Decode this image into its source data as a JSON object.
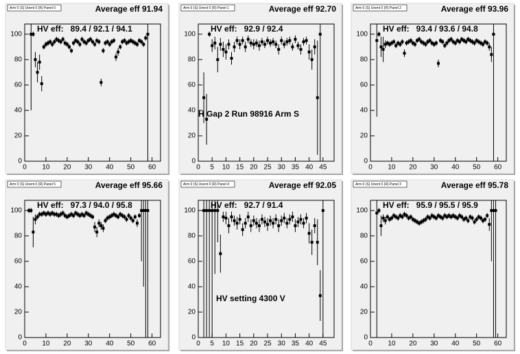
{
  "chart_data": [
    {
      "type": "scatter",
      "label": "Arm 0 (S) Unent 0 (R) Panel 0",
      "title": "Average eff 91.94",
      "annotation": "HV eff:   89.4 / 92.1 / 94.1",
      "x": [
        3,
        4,
        5,
        6,
        7,
        8,
        9,
        10,
        11,
        12,
        13,
        14,
        15,
        16,
        17,
        18,
        19,
        20,
        21,
        22,
        23,
        24,
        25,
        26,
        27,
        28,
        29,
        30,
        31,
        32,
        33,
        34,
        35,
        36,
        37,
        38,
        39,
        40,
        41,
        42,
        43,
        44,
        45,
        46,
        47,
        48,
        49,
        50,
        51,
        52,
        53,
        54,
        55,
        56,
        57,
        58
      ],
      "values": [
        100,
        100,
        80,
        70,
        78,
        61,
        90,
        92,
        93,
        94,
        92,
        94,
        96,
        95,
        94,
        96,
        93,
        92,
        90,
        87,
        93,
        95,
        94,
        92,
        96,
        94,
        93,
        95,
        96,
        94,
        92,
        95,
        94,
        62,
        87,
        93,
        94,
        92,
        94,
        95,
        82,
        86,
        90,
        94,
        95,
        93,
        94,
        95,
        94,
        93,
        92,
        95,
        94,
        92,
        97,
        100
      ],
      "errors": [
        60,
        2,
        6,
        8,
        6,
        6,
        2,
        2,
        2,
        2,
        2,
        2,
        2,
        2,
        2,
        2,
        2,
        2,
        2,
        2,
        2,
        2,
        2,
        2,
        2,
        2,
        2,
        2,
        2,
        2,
        2,
        2,
        2,
        3,
        2,
        2,
        2,
        2,
        2,
        2,
        3,
        3,
        2,
        2,
        2,
        2,
        2,
        2,
        2,
        2,
        2,
        2,
        2,
        2,
        2,
        100
      ],
      "color": "#000000",
      "xlim": [
        0,
        64
      ],
      "ylim": [
        0,
        108
      ],
      "xticks": [
        0,
        10,
        20,
        30,
        40,
        50,
        60
      ],
      "yticks": [
        0,
        20,
        40,
        60,
        80,
        100
      ]
    },
    {
      "type": "scatter",
      "label": "Arm 0 (S) Unent 0 (R) Panel 1",
      "title": "Average eff 92.70",
      "annotation": "HV eff:   92.9 / 92.4",
      "note": "H Gap 2 Run 98916 Arm S",
      "x": [
        2,
        3,
        4,
        5,
        6,
        7,
        8,
        9,
        10,
        11,
        12,
        13,
        14,
        15,
        16,
        17,
        18,
        19,
        20,
        21,
        22,
        23,
        24,
        25,
        26,
        27,
        28,
        29,
        30,
        31,
        32,
        33,
        34,
        35,
        36,
        37,
        38,
        39,
        40,
        41,
        42,
        43,
        44
      ],
      "values": [
        50,
        33,
        100,
        91,
        93,
        80,
        92,
        88,
        86,
        92,
        81,
        90,
        95,
        92,
        95,
        90,
        96,
        93,
        92,
        93,
        91,
        94,
        92,
        95,
        93,
        94,
        92,
        88,
        95,
        92,
        94,
        95,
        90,
        96,
        91,
        88,
        94,
        95,
        86,
        80,
        90,
        50,
        100
      ],
      "errors": [
        20,
        20,
        2,
        5,
        5,
        10,
        5,
        6,
        6,
        4,
        5,
        4,
        3,
        4,
        3,
        4,
        3,
        3,
        4,
        3,
        4,
        3,
        3,
        3,
        3,
        3,
        3,
        4,
        3,
        3,
        3,
        3,
        3,
        3,
        3,
        4,
        3,
        3,
        6,
        8,
        6,
        45,
        100
      ],
      "color": "#000000",
      "xlim": [
        0,
        49
      ],
      "ylim": [
        0,
        108
      ],
      "xticks": [
        0,
        5,
        10,
        15,
        20,
        25,
        30,
        35,
        40,
        45
      ],
      "yticks": [
        0,
        20,
        40,
        60,
        80,
        100
      ]
    },
    {
      "type": "scatter",
      "label": "Arm 0 (S) Unent 0 (R) Panel 2",
      "title": "Average eff 93.96",
      "annotation": "HV eff:   93.4 / 93.6 / 94.8",
      "x": [
        3,
        4,
        5,
        6,
        7,
        8,
        9,
        10,
        11,
        12,
        13,
        14,
        15,
        16,
        17,
        18,
        19,
        20,
        21,
        22,
        23,
        24,
        25,
        26,
        27,
        28,
        29,
        30,
        31,
        32,
        33,
        34,
        35,
        36,
        37,
        38,
        39,
        40,
        41,
        42,
        43,
        44,
        45,
        46,
        47,
        48,
        49,
        50,
        51,
        52,
        53,
        54,
        55,
        56,
        57,
        58
      ],
      "values": [
        95,
        100,
        90,
        88,
        92,
        93,
        92,
        93,
        94,
        91,
        93,
        92,
        94,
        85,
        93,
        94,
        95,
        93,
        92,
        95,
        96,
        94,
        93,
        92,
        94,
        95,
        93,
        92,
        93,
        77,
        95,
        94,
        91,
        93,
        95,
        96,
        94,
        93,
        95,
        94,
        96,
        95,
        94,
        96,
        95,
        94,
        93,
        95,
        94,
        93,
        92,
        94,
        93,
        90,
        84,
        100
      ],
      "errors": [
        60,
        2,
        8,
        10,
        3,
        2,
        2,
        2,
        2,
        2,
        2,
        2,
        2,
        3,
        2,
        2,
        2,
        2,
        2,
        2,
        2,
        2,
        2,
        2,
        2,
        2,
        2,
        2,
        2,
        3,
        2,
        2,
        2,
        2,
        2,
        2,
        2,
        2,
        2,
        2,
        2,
        2,
        2,
        2,
        2,
        2,
        2,
        2,
        2,
        2,
        2,
        2,
        2,
        3,
        6,
        100
      ],
      "color": "#000000",
      "xlim": [
        0,
        64
      ],
      "ylim": [
        0,
        108
      ],
      "xticks": [
        0,
        10,
        20,
        30,
        40,
        50,
        60
      ],
      "yticks": [
        0,
        20,
        40,
        60,
        80,
        100
      ]
    },
    {
      "type": "scatter",
      "label": "Arm 0 (S) Unent 0 (R) Panel 5",
      "title": "Average eff 95.66",
      "annotation": "HV eff:   97.3 / 94.0 / 95.8",
      "x": [
        2,
        3,
        4,
        5,
        6,
        7,
        8,
        9,
        10,
        11,
        12,
        13,
        14,
        15,
        16,
        17,
        18,
        19,
        20,
        21,
        22,
        23,
        24,
        25,
        26,
        27,
        28,
        29,
        30,
        31,
        32,
        33,
        34,
        35,
        36,
        37,
        38,
        39,
        40,
        41,
        42,
        43,
        44,
        45,
        46,
        47,
        48,
        49,
        50,
        51,
        52,
        53,
        54,
        55,
        56,
        57,
        58
      ],
      "values": [
        100,
        100,
        83,
        93,
        95,
        97,
        97,
        98,
        97,
        98,
        97,
        98,
        97,
        97,
        96,
        97,
        98,
        96,
        95,
        96,
        97,
        96,
        98,
        97,
        96,
        97,
        96,
        98,
        97,
        96,
        95,
        87,
        83,
        90,
        88,
        86,
        92,
        94,
        95,
        96,
        97,
        96,
        95,
        97,
        96,
        95,
        93,
        96,
        94,
        92,
        95,
        90,
        96,
        100,
        100,
        100,
        100
      ],
      "errors": [
        2,
        2,
        12,
        4,
        2,
        2,
        2,
        2,
        2,
        2,
        2,
        2,
        2,
        2,
        2,
        2,
        2,
        2,
        2,
        2,
        2,
        2,
        2,
        2,
        2,
        2,
        2,
        2,
        2,
        2,
        2,
        4,
        4,
        3,
        3,
        3,
        2,
        2,
        2,
        2,
        2,
        2,
        2,
        2,
        2,
        2,
        2,
        2,
        2,
        2,
        2,
        3,
        2,
        40,
        60,
        100,
        100
      ],
      "color": "#000000",
      "xlim": [
        0,
        64
      ],
      "ylim": [
        0,
        108
      ],
      "xticks": [
        0,
        10,
        20,
        30,
        40,
        50,
        60
      ],
      "yticks": [
        0,
        20,
        40,
        60,
        80,
        100
      ]
    },
    {
      "type": "scatter",
      "label": "Arm 0 (S) Unent 0 (R) Panel 4",
      "title": "Average eff 92.05",
      "annotation": "HV eff:   92.7 / 91.4",
      "note": "HV setting 4300 V",
      "x": [
        2,
        3,
        4,
        5,
        6,
        7,
        8,
        9,
        10,
        11,
        12,
        13,
        14,
        15,
        16,
        17,
        18,
        19,
        20,
        21,
        22,
        23,
        24,
        25,
        26,
        27,
        28,
        29,
        30,
        31,
        32,
        33,
        34,
        35,
        36,
        37,
        38,
        39,
        40,
        41,
        42,
        43,
        44,
        45
      ],
      "values": [
        100,
        100,
        100,
        100,
        100,
        100,
        66,
        95,
        94,
        88,
        95,
        92,
        90,
        93,
        85,
        90,
        95,
        88,
        92,
        90,
        88,
        93,
        91,
        89,
        92,
        90,
        93,
        88,
        92,
        94,
        90,
        93,
        95,
        88,
        91,
        93,
        90,
        94,
        82,
        75,
        88,
        75,
        33,
        100
      ],
      "errors": [
        100,
        100,
        100,
        100,
        50,
        25,
        15,
        4,
        5,
        6,
        4,
        4,
        5,
        4,
        5,
        4,
        4,
        5,
        4,
        4,
        5,
        4,
        4,
        5,
        4,
        4,
        4,
        5,
        4,
        4,
        4,
        4,
        4,
        5,
        4,
        4,
        4,
        4,
        8,
        10,
        6,
        18,
        20,
        100
      ],
      "color": "#000000",
      "xlim": [
        0,
        49
      ],
      "ylim": [
        0,
        108
      ],
      "xticks": [
        0,
        5,
        10,
        15,
        20,
        25,
        30,
        35,
        40,
        45
      ],
      "yticks": [
        0,
        20,
        40,
        60,
        80,
        100
      ]
    },
    {
      "type": "scatter",
      "label": "Arm 0 (S) Unent 0 (R) Panel 3",
      "title": "Average eff 95.78",
      "annotation": "HV eff:   95.9 / 95.5 / 95.9",
      "x": [
        3,
        4,
        5,
        6,
        7,
        8,
        9,
        10,
        11,
        12,
        13,
        14,
        15,
        16,
        17,
        18,
        19,
        20,
        21,
        22,
        23,
        24,
        25,
        26,
        27,
        28,
        29,
        30,
        31,
        32,
        33,
        34,
        35,
        36,
        37,
        38,
        39,
        40,
        41,
        42,
        43,
        44,
        45,
        46,
        47,
        48,
        49,
        50,
        51,
        52,
        53,
        54,
        55,
        56,
        57,
        58,
        59
      ],
      "values": [
        98,
        100,
        88,
        94,
        92,
        95,
        93,
        94,
        96,
        95,
        94,
        96,
        95,
        97,
        96,
        94,
        95,
        93,
        92,
        91,
        90,
        91,
        92,
        93,
        95,
        94,
        96,
        95,
        94,
        96,
        95,
        94,
        96,
        95,
        96,
        95,
        96,
        95,
        94,
        96,
        95,
        93,
        94,
        92,
        95,
        94,
        91,
        93,
        95,
        94,
        92,
        93,
        96,
        89,
        100,
        100,
        100
      ],
      "errors": [
        100,
        2,
        8,
        3,
        3,
        2,
        2,
        2,
        2,
        2,
        2,
        2,
        2,
        2,
        2,
        2,
        2,
        2,
        2,
        2,
        2,
        2,
        2,
        2,
        2,
        2,
        2,
        2,
        2,
        2,
        2,
        2,
        2,
        2,
        2,
        2,
        2,
        2,
        2,
        2,
        2,
        2,
        2,
        2,
        2,
        2,
        2,
        2,
        2,
        2,
        2,
        2,
        2,
        5,
        40,
        100,
        100
      ],
      "color": "#000000",
      "xlim": [
        0,
        64
      ],
      "ylim": [
        0,
        108
      ],
      "xticks": [
        0,
        10,
        20,
        30,
        40,
        50,
        60
      ],
      "yticks": [
        0,
        20,
        40,
        60,
        80,
        100
      ]
    }
  ]
}
